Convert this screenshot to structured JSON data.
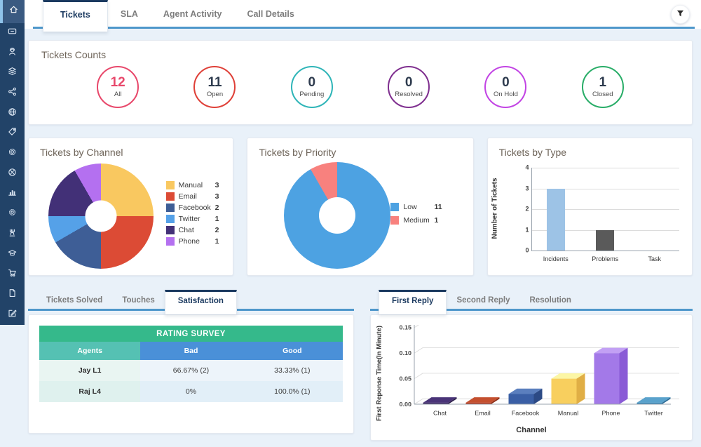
{
  "sidebar": {
    "icons": [
      {
        "name": "home-icon",
        "active": true
      },
      {
        "name": "credit-card-icon",
        "active": false
      },
      {
        "name": "support-agent-icon",
        "active": false
      },
      {
        "name": "layers-icon",
        "active": false
      },
      {
        "name": "share-icon",
        "active": false
      },
      {
        "name": "globe-icon",
        "active": false
      },
      {
        "name": "tag-icon",
        "active": false
      },
      {
        "name": "settings-icon",
        "active": false
      },
      {
        "name": "sports-ball-icon",
        "active": false
      },
      {
        "name": "bar-chart-icon",
        "active": false
      },
      {
        "name": "settings-2-icon",
        "active": false
      },
      {
        "name": "rook-icon",
        "active": false
      },
      {
        "name": "graduation-cap-icon",
        "active": false
      },
      {
        "name": "cart-icon",
        "active": false
      },
      {
        "name": "document-icon",
        "active": false
      },
      {
        "name": "compose-icon",
        "active": false
      }
    ]
  },
  "header": {
    "tabs": [
      {
        "label": "Tickets",
        "active": true
      },
      {
        "label": "SLA",
        "active": false
      },
      {
        "label": "Agent Activity",
        "active": false
      },
      {
        "label": "Call Details",
        "active": false
      }
    ],
    "filter_icon": "funnel-icon"
  },
  "counts": {
    "title": "Tickets Counts",
    "items": [
      {
        "label": "All",
        "value": "12",
        "color": "#E8486B",
        "num_color": "#E8486B"
      },
      {
        "label": "Open",
        "value": "11",
        "color": "#DF4038",
        "num_color": "#2E3B4E"
      },
      {
        "label": "Pending",
        "value": "0",
        "color": "#2FB5B8",
        "num_color": "#2E3B4E"
      },
      {
        "label": "Resolved",
        "value": "0",
        "color": "#7F2F8F",
        "num_color": "#2E3B4E"
      },
      {
        "label": "On Hold",
        "value": "0",
        "color": "#C244E4",
        "num_color": "#2E3B4E"
      },
      {
        "label": "Closed",
        "value": "1",
        "color": "#29AD68",
        "num_color": "#2E3B4E"
      }
    ]
  },
  "channel_chart": {
    "title": "Tickets by Channel",
    "type": "donut",
    "legend": [
      {
        "label": "Manual",
        "value": 3,
        "color": "#F9C860"
      },
      {
        "label": "Email",
        "value": 3,
        "color": "#DC4B35"
      },
      {
        "label": "Facebook",
        "value": 2,
        "color": "#3E5E96"
      },
      {
        "label": "Twitter",
        "value": 1,
        "color": "#55A1E8"
      },
      {
        "label": "Chat",
        "value": 2,
        "color": "#423077"
      },
      {
        "label": "Phone",
        "value": 1,
        "color": "#B470F0"
      }
    ]
  },
  "priority_chart": {
    "title": "Tickets by Priority",
    "type": "donut",
    "legend": [
      {
        "label": "Low",
        "value": 11,
        "color": "#4DA2E2"
      },
      {
        "label": "Medium",
        "value": 1,
        "color": "#F8817E"
      }
    ]
  },
  "type_chart": {
    "title": "Tickets by Type",
    "type": "bar",
    "ylabel": "Number of Tickets",
    "yticks": [
      "4",
      "3",
      "2",
      "1",
      "0"
    ],
    "ylim": [
      0,
      4
    ],
    "categories": [
      "Incidents",
      "Problems",
      "Task"
    ],
    "values": [
      3,
      1,
      0
    ],
    "colors": [
      "#9DC3E6",
      "#5A5A5A",
      "#9DC3E6"
    ]
  },
  "left_panel": {
    "tabs": [
      {
        "label": "Tickets Solved",
        "active": false
      },
      {
        "label": "Touches",
        "active": false
      },
      {
        "label": "Satisfaction",
        "active": true
      }
    ],
    "table": {
      "title": "RATING SURVEY",
      "columns": [
        "Agents",
        "Bad",
        "Good"
      ],
      "rows": [
        {
          "agent": "Jay L1",
          "bad": "66.67% (2)",
          "good": "33.33% (1)"
        },
        {
          "agent": "Raj L4",
          "bad": "0%",
          "good": "100.0% (1)"
        }
      ]
    }
  },
  "right_panel": {
    "tabs": [
      {
        "label": "First Reply",
        "active": true
      },
      {
        "label": "Second Reply",
        "active": false
      },
      {
        "label": "Resolution",
        "active": false
      }
    ],
    "chart": {
      "type": "bar3d",
      "ylabel": "First Reponse Time(In Minute)",
      "xlabel": "Channel",
      "yticks": [
        "0.00",
        "0.05",
        "0.10",
        "0.15"
      ],
      "ylim": [
        0,
        0.15
      ],
      "categories": [
        "Chat",
        "Email",
        "Facebook",
        "Manual",
        "Phone",
        "Twitter"
      ],
      "values": [
        0.003,
        0.003,
        0.02,
        0.05,
        0.1,
        0.003
      ],
      "colors": [
        {
          "front": "#3D2A63",
          "top": "#4A3478",
          "side": "#2E1F4C"
        },
        {
          "front": "#B23A1E",
          "top": "#C4502F",
          "side": "#8E2D16"
        },
        {
          "front": "#3A5FA5",
          "top": "#5B7FBE",
          "side": "#2C4A85"
        },
        {
          "front": "#F8CF5E",
          "top": "#FCF6A5",
          "side": "#E0AE45"
        },
        {
          "front": "#A379E8",
          "top": "#C2A0F4",
          "side": "#8A5BD6"
        },
        {
          "front": "#3C88B8",
          "top": "#5AA2CC",
          "side": "#2F6E98"
        }
      ]
    }
  }
}
